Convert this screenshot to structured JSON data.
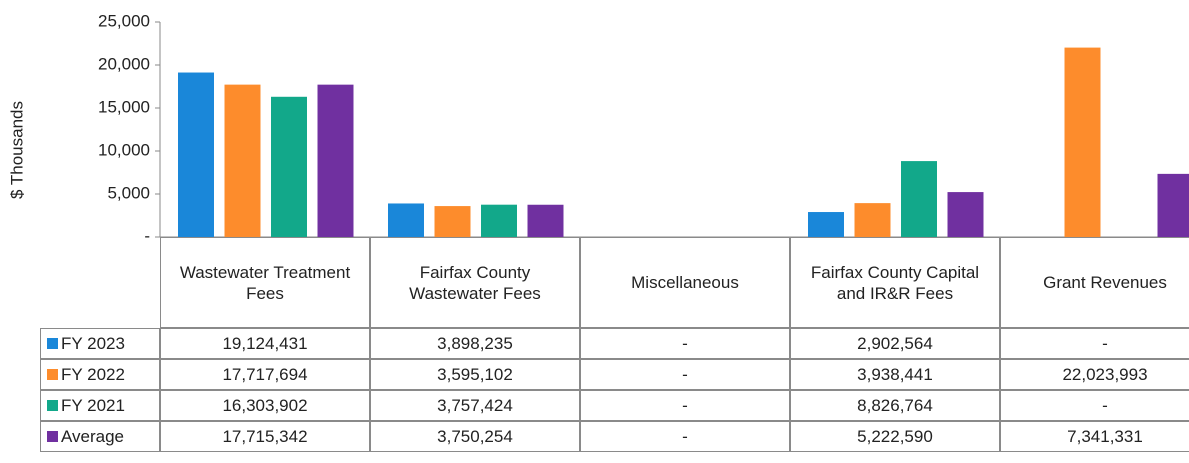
{
  "chart_data": {
    "type": "bar",
    "y_label": "$ Thousands",
    "categories": [
      "Wastewater Treatment Fees",
      "Fairfax County Wastewater Fees",
      "Miscellaneous",
      "Fairfax County Capital and IR&R Fees",
      "Grant Revenues"
    ],
    "series": [
      {
        "name": "FY 2023",
        "color": "#1a87d9",
        "values": [
          19124.431,
          3898.235,
          null,
          2902.564,
          null
        ],
        "value_labels": [
          "19,124,431",
          "3,898,235",
          "-",
          "2,902,564",
          "-"
        ]
      },
      {
        "name": "FY 2022",
        "color": "#fd8c2c",
        "values": [
          17717.694,
          3595.102,
          null,
          3938.441,
          22023.993
        ],
        "value_labels": [
          "17,717,694",
          "3,595,102",
          "-",
          "3,938,441",
          "22,023,993"
        ]
      },
      {
        "name": "FY 2021",
        "color": "#12a88a",
        "values": [
          16303.902,
          3757.424,
          null,
          8826.764,
          null
        ],
        "value_labels": [
          "16,303,902",
          "3,757,424",
          "-",
          "8,826,764",
          "-"
        ]
      },
      {
        "name": "Average",
        "color": "#7030a0",
        "values": [
          17715.342,
          3750.254,
          null,
          5222.59,
          7341.331
        ],
        "value_labels": [
          "17,715,342",
          "3,750,254",
          "-",
          "5,222,590",
          "7,341,331"
        ]
      }
    ],
    "ylim": [
      0,
      25000
    ],
    "yticks": [
      {
        "value": 0,
        "label": "-"
      },
      {
        "value": 5000,
        "label": "5,000"
      },
      {
        "value": 10000,
        "label": "10,000"
      },
      {
        "value": 15000,
        "label": "15,000"
      },
      {
        "value": 20000,
        "label": "20,000"
      },
      {
        "value": 25000,
        "label": "25,000"
      }
    ]
  }
}
